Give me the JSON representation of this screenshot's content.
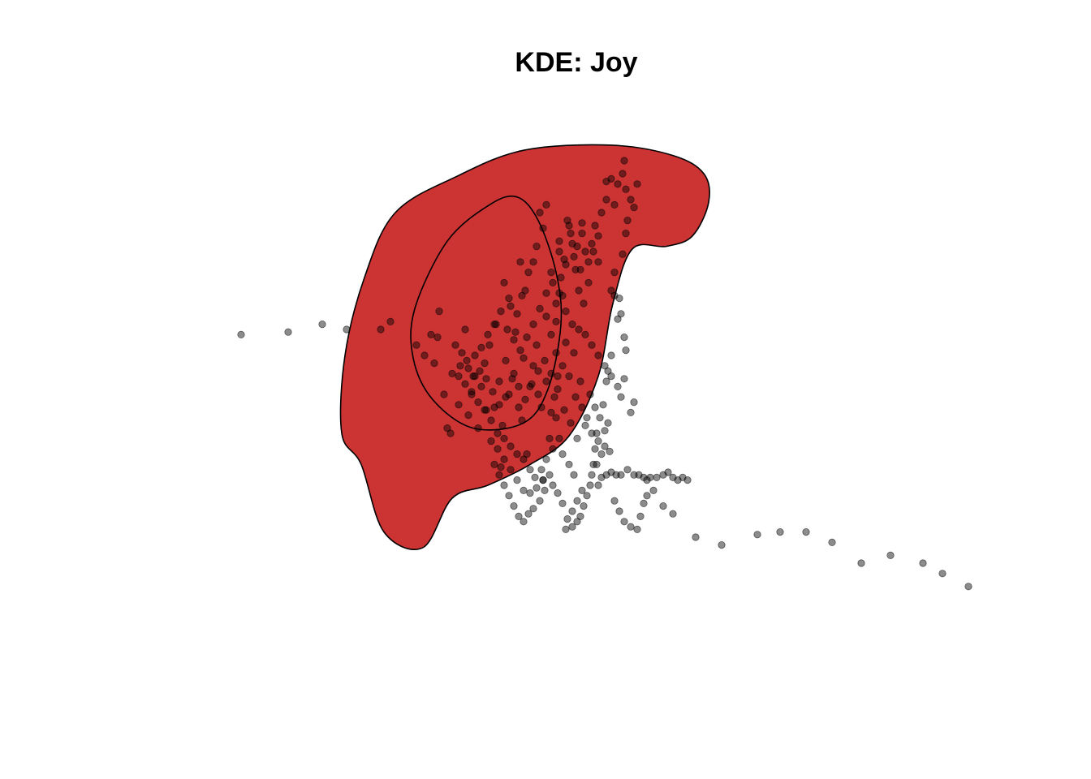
{
  "colors": {
    "outer_region_fill": "#CC3333",
    "contour_stroke": "#000000",
    "point_fill": "#000000",
    "point_opacity": 0.45
  },
  "chart_data": {
    "type": "scatter",
    "title": "KDE: Joy",
    "xlabel": "",
    "ylabel": "",
    "grid": false,
    "axes": false,
    "legend": "none",
    "regions": [
      {
        "kind": "density-contour-filled",
        "level": "outer",
        "fill": "#CC3333",
        "outline": [
          [
            60,
            135
          ],
          [
            82,
            130
          ],
          [
            108,
            122
          ],
          [
            132,
            111
          ],
          [
            150,
            88
          ],
          [
            159,
            60
          ],
          [
            171,
            39
          ],
          [
            192,
            38
          ],
          [
            208,
            34
          ],
          [
            218,
            21
          ],
          [
            215,
            10
          ],
          [
            196,
            3
          ],
          [
            157,
            -1
          ],
          [
            104,
            1
          ],
          [
            63,
            11
          ],
          [
            25,
            25
          ],
          [
            6,
            50
          ],
          [
            -6,
            80
          ],
          [
            -8,
            110
          ],
          [
            4,
            122
          ],
          [
            18,
            148
          ],
          [
            42,
            154
          ],
          [
            60,
            135
          ]
        ]
      },
      {
        "kind": "density-contour-line",
        "level": "inner",
        "outline": [
          [
            104,
            106
          ],
          [
            119,
            93
          ],
          [
            127,
            68
          ],
          [
            124,
            48
          ],
          [
            113,
            28
          ],
          [
            100,
            19
          ],
          [
            83,
            22
          ],
          [
            57,
            36
          ],
          [
            37,
            62
          ],
          [
            36,
            81
          ],
          [
            48,
            97
          ],
          [
            73,
            108
          ],
          [
            104,
            106
          ]
        ]
      }
    ],
    "points": [
      [
        -70,
        72
      ],
      [
        -41,
        71
      ],
      [
        -20,
        68
      ],
      [
        -5,
        70
      ],
      [
        16,
        70
      ],
      [
        22,
        67
      ],
      [
        38,
        76
      ],
      [
        43,
        80
      ],
      [
        47,
        72
      ],
      [
        49,
        83
      ],
      [
        51,
        73
      ],
      [
        52,
        63
      ],
      [
        55,
        95
      ],
      [
        57,
        108
      ],
      [
        59,
        110
      ],
      [
        60,
        87
      ],
      [
        62,
        76
      ],
      [
        64,
        99
      ],
      [
        65,
        84
      ],
      [
        68,
        70
      ],
      [
        70,
        103
      ],
      [
        72,
        95
      ],
      [
        74,
        88
      ],
      [
        76,
        108
      ],
      [
        78,
        92
      ],
      [
        80,
        83
      ],
      [
        81,
        101
      ],
      [
        83,
        76
      ],
      [
        84,
        113
      ],
      [
        86,
        100
      ],
      [
        87,
        68
      ],
      [
        89,
        90
      ],
      [
        90,
        123
      ],
      [
        91,
        107
      ],
      [
        93,
        82
      ],
      [
        95,
        95
      ],
      [
        96,
        61
      ],
      [
        98,
        87
      ],
      [
        99,
        71
      ],
      [
        101,
        100
      ],
      [
        103,
        105
      ],
      [
        104,
        81
      ],
      [
        106,
        118
      ],
      [
        108,
        92
      ],
      [
        110,
        84
      ],
      [
        112,
        76
      ],
      [
        113,
        95
      ],
      [
        115,
        100
      ],
      [
        116,
        128
      ],
      [
        118,
        90
      ],
      [
        120,
        112
      ],
      [
        121,
        102
      ],
      [
        123,
        96
      ],
      [
        124,
        104
      ],
      [
        125,
        88
      ],
      [
        126,
        40
      ],
      [
        127,
        50
      ],
      [
        129,
        43
      ],
      [
        131,
        28
      ],
      [
        133,
        33
      ],
      [
        135,
        42
      ],
      [
        137,
        38
      ],
      [
        139,
        47
      ],
      [
        140,
        33
      ],
      [
        114,
        25
      ],
      [
        116,
        31
      ],
      [
        118,
        22
      ],
      [
        121,
        48
      ],
      [
        124,
        60
      ],
      [
        126,
        36
      ],
      [
        128,
        57
      ],
      [
        130,
        45
      ],
      [
        132,
        30
      ],
      [
        134,
        37
      ],
      [
        136,
        47
      ],
      [
        138,
        55
      ],
      [
        140,
        29
      ],
      [
        142,
        40
      ],
      [
        144,
        44
      ],
      [
        146,
        37
      ],
      [
        148,
        30
      ],
      [
        150,
        44
      ],
      [
        152,
        25
      ],
      [
        150,
        34
      ],
      [
        147,
        40
      ],
      [
        144,
        52
      ],
      [
        141,
        60
      ],
      [
        155,
        20
      ],
      [
        160,
        22
      ],
      [
        155,
        13
      ],
      [
        158,
        12
      ],
      [
        162,
        14
      ],
      [
        165,
        10
      ],
      [
        166,
        5
      ],
      [
        167,
        16
      ],
      [
        170,
        20
      ],
      [
        172,
        23
      ],
      [
        174,
        14
      ],
      [
        168,
        28
      ],
      [
        167,
        33
      ],
      [
        165,
        41
      ],
      [
        160,
        48
      ],
      [
        158,
        55
      ],
      [
        160,
        57
      ],
      [
        163,
        58
      ],
      [
        164,
        64
      ],
      [
        166,
        73
      ],
      [
        167,
        78
      ],
      [
        158,
        80
      ],
      [
        156,
        86
      ],
      [
        155,
        90
      ],
      [
        153,
        99
      ],
      [
        151,
        104
      ],
      [
        149,
        110
      ],
      [
        148,
        116
      ],
      [
        147,
        122
      ],
      [
        145,
        130
      ],
      [
        143,
        134
      ],
      [
        141,
        138
      ],
      [
        139,
        142
      ],
      [
        137,
        144
      ],
      [
        134,
        146
      ],
      [
        130,
        147
      ],
      [
        100,
        64
      ],
      [
        103,
        57
      ],
      [
        105,
        55
      ],
      [
        107,
        48
      ],
      [
        110,
        44
      ],
      [
        112,
        38
      ],
      [
        95,
        58
      ],
      [
        92,
        52
      ],
      [
        102,
        44
      ],
      [
        118,
        65
      ],
      [
        121,
        72
      ],
      [
        124,
        79
      ],
      [
        128,
        84
      ],
      [
        132,
        88
      ],
      [
        136,
        96
      ],
      [
        140,
        100
      ],
      [
        143,
        104
      ],
      [
        146,
        110
      ],
      [
        150,
        113
      ],
      [
        154,
        115
      ],
      [
        157,
        117
      ],
      [
        150,
        130
      ],
      [
        152,
        127
      ],
      [
        155,
        126
      ],
      [
        158,
        125
      ],
      [
        161,
        126
      ],
      [
        164,
        126
      ],
      [
        168,
        124
      ],
      [
        172,
        126
      ],
      [
        175,
        126
      ],
      [
        178,
        127
      ],
      [
        180,
        128
      ],
      [
        182,
        127
      ],
      [
        186,
        127
      ],
      [
        190,
        126
      ],
      [
        193,
        125
      ],
      [
        196,
        127
      ],
      [
        199,
        128
      ],
      [
        202,
        127
      ],
      [
        205,
        128
      ],
      [
        135,
        126
      ],
      [
        132,
        122
      ],
      [
        128,
        118
      ],
      [
        126,
        112
      ],
      [
        122,
        116
      ],
      [
        118,
        120
      ],
      [
        115,
        124
      ],
      [
        111,
        127
      ],
      [
        108,
        124
      ],
      [
        104,
        120
      ],
      [
        100,
        118
      ],
      [
        96,
        115
      ],
      [
        92,
        112
      ],
      [
        88,
        110
      ],
      [
        84,
        105
      ],
      [
        80,
        101
      ],
      [
        76,
        98
      ],
      [
        72,
        94
      ],
      [
        68,
        91
      ],
      [
        64,
        88
      ],
      [
        66,
        79
      ],
      [
        70,
        85
      ],
      [
        74,
        80
      ],
      [
        78,
        77
      ],
      [
        82,
        72
      ],
      [
        86,
        68
      ],
      [
        90,
        63
      ],
      [
        94,
        70
      ],
      [
        98,
        74
      ],
      [
        102,
        78
      ],
      [
        106,
        73
      ],
      [
        110,
        68
      ],
      [
        114,
        62
      ],
      [
        118,
        56
      ],
      [
        122,
        52
      ],
      [
        126,
        56
      ],
      [
        130,
        63
      ],
      [
        134,
        68
      ],
      [
        138,
        70
      ],
      [
        142,
        72
      ],
      [
        146,
        76
      ],
      [
        150,
        80
      ],
      [
        154,
        84
      ],
      [
        158,
        88
      ],
      [
        162,
        92
      ],
      [
        164,
        96
      ],
      [
        156,
        106
      ],
      [
        154,
        109
      ],
      [
        152,
        118
      ],
      [
        149,
        122
      ],
      [
        146,
        126
      ],
      [
        140,
        132
      ],
      [
        137,
        136
      ],
      [
        134,
        140
      ],
      [
        131,
        143
      ],
      [
        128,
        137
      ],
      [
        125,
        133
      ],
      [
        122,
        130
      ],
      [
        120,
        126
      ],
      [
        117,
        132
      ],
      [
        114,
        136
      ],
      [
        110,
        139
      ],
      [
        107,
        141
      ],
      [
        104,
        144
      ],
      [
        101,
        142
      ],
      [
        98,
        138
      ],
      [
        95,
        134
      ],
      [
        92,
        130
      ],
      [
        89,
        126
      ],
      [
        86,
        122
      ],
      [
        88,
        116
      ],
      [
        92,
        120
      ],
      [
        96,
        124
      ],
      [
        100,
        128
      ],
      [
        104,
        132
      ],
      [
        108,
        133
      ],
      [
        112,
        131
      ],
      [
        116,
        128
      ],
      [
        160,
        136
      ],
      [
        163,
        140
      ],
      [
        166,
        144
      ],
      [
        170,
        146
      ],
      [
        174,
        147
      ],
      [
        176,
        142
      ],
      [
        178,
        137
      ],
      [
        180,
        134
      ],
      [
        184,
        132
      ],
      [
        190,
        138
      ],
      [
        196,
        141
      ],
      [
        210,
        150
      ],
      [
        226,
        153
      ],
      [
        248,
        149
      ],
      [
        262,
        148
      ],
      [
        278,
        148
      ],
      [
        294,
        152
      ],
      [
        312,
        160
      ],
      [
        330,
        157
      ],
      [
        350,
        160
      ],
      [
        362,
        164
      ],
      [
        378,
        169
      ],
      [
        170,
        102
      ],
      [
        172,
        98
      ],
      [
        166,
        89
      ],
      [
        162,
        66
      ],
      [
        124,
        67
      ],
      [
        130,
        75
      ],
      [
        135,
        79
      ],
      [
        139,
        90
      ],
      [
        145,
        95
      ],
      [
        148,
        100
      ],
      [
        142,
        107
      ],
      [
        137,
        112
      ],
      [
        133,
        106
      ],
      [
        129,
        101
      ],
      [
        125,
        93
      ],
      [
        121,
        87
      ],
      [
        117,
        82
      ],
      [
        113,
        86
      ],
      [
        109,
        91
      ],
      [
        105,
        97
      ],
      [
        101,
        92
      ],
      [
        97,
        89
      ],
      [
        93,
        96
      ],
      [
        89,
        99
      ],
      [
        85,
        94
      ],
      [
        81,
        89
      ],
      [
        77,
        86
      ],
      [
        73,
        88
      ],
      [
        69,
        82
      ]
    ]
  }
}
